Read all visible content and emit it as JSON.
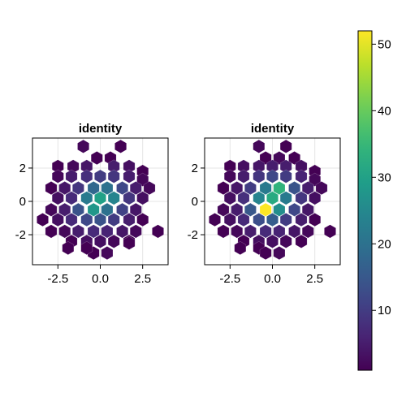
{
  "chart_data": [
    {
      "type": "heatmap",
      "subtype": "hexbin",
      "title": "identity",
      "xlabel": "",
      "ylabel": "",
      "xlim": [
        -4,
        4
      ],
      "ylim": [
        -3.8,
        3.8
      ],
      "xticks": [
        "-2.5",
        "0.0",
        "2.5"
      ],
      "yticks": [
        "2",
        "0",
        "-2"
      ],
      "grid": true,
      "bins": [
        {
          "x": -1.0,
          "y": 3.3,
          "v": 2
        },
        {
          "x": 1.2,
          "y": 3.3,
          "v": 1
        },
        {
          "x": -0.2,
          "y": 2.6,
          "v": 1
        },
        {
          "x": 0.6,
          "y": 2.6,
          "v": 1
        },
        {
          "x": -2.5,
          "y": 2.1,
          "v": 1
        },
        {
          "x": -1.6,
          "y": 2.1,
          "v": 2
        },
        {
          "x": -0.8,
          "y": 2.1,
          "v": 4
        },
        {
          "x": 0.8,
          "y": 2.1,
          "v": 5
        },
        {
          "x": 1.7,
          "y": 2.1,
          "v": 3
        },
        {
          "x": 2.5,
          "y": 1.8,
          "v": 1
        },
        {
          "x": -2.5,
          "y": 1.5,
          "v": 2
        },
        {
          "x": -1.7,
          "y": 1.5,
          "v": 5
        },
        {
          "x": -0.8,
          "y": 1.5,
          "v": 8
        },
        {
          "x": 0.0,
          "y": 1.5,
          "v": 10
        },
        {
          "x": 0.8,
          "y": 1.5,
          "v": 9
        },
        {
          "x": 1.7,
          "y": 1.5,
          "v": 5
        },
        {
          "x": 2.5,
          "y": 1.3,
          "v": 2
        },
        {
          "x": -2.9,
          "y": 0.8,
          "v": 1
        },
        {
          "x": -2.1,
          "y": 0.8,
          "v": 4
        },
        {
          "x": -1.3,
          "y": 0.8,
          "v": 9
        },
        {
          "x": -0.4,
          "y": 0.8,
          "v": 18
        },
        {
          "x": 0.4,
          "y": 0.8,
          "v": 20
        },
        {
          "x": 1.3,
          "y": 0.8,
          "v": 12
        },
        {
          "x": 2.1,
          "y": 0.8,
          "v": 5
        },
        {
          "x": 2.9,
          "y": 0.8,
          "v": 2
        },
        {
          "x": -2.5,
          "y": 0.2,
          "v": 3
        },
        {
          "x": -1.7,
          "y": 0.2,
          "v": 7
        },
        {
          "x": -0.8,
          "y": 0.2,
          "v": 22
        },
        {
          "x": 0.0,
          "y": 0.2,
          "v": 30
        },
        {
          "x": 0.8,
          "y": 0.2,
          "v": 24
        },
        {
          "x": 1.7,
          "y": 0.2,
          "v": 9
        },
        {
          "x": 2.5,
          "y": 0.2,
          "v": 3
        },
        {
          "x": -2.9,
          "y": -0.5,
          "v": 2
        },
        {
          "x": -2.1,
          "y": -0.5,
          "v": 5
        },
        {
          "x": -1.3,
          "y": -0.5,
          "v": 14
        },
        {
          "x": -0.4,
          "y": -0.5,
          "v": 28
        },
        {
          "x": 0.4,
          "y": -0.5,
          "v": 20
        },
        {
          "x": 1.3,
          "y": -0.5,
          "v": 11
        },
        {
          "x": 2.1,
          "y": -0.5,
          "v": 4
        },
        {
          "x": -3.4,
          "y": -1.1,
          "v": 1
        },
        {
          "x": -2.5,
          "y": -1.1,
          "v": 3
        },
        {
          "x": -1.7,
          "y": -1.1,
          "v": 7
        },
        {
          "x": -0.8,
          "y": -1.1,
          "v": 12
        },
        {
          "x": 0.0,
          "y": -1.1,
          "v": 14
        },
        {
          "x": 0.8,
          "y": -1.1,
          "v": 10
        },
        {
          "x": 1.7,
          "y": -1.1,
          "v": 5
        },
        {
          "x": 2.5,
          "y": -1.1,
          "v": 1
        },
        {
          "x": -2.9,
          "y": -1.8,
          "v": 1
        },
        {
          "x": -2.1,
          "y": -1.8,
          "v": 2
        },
        {
          "x": -1.3,
          "y": -1.8,
          "v": 5
        },
        {
          "x": -0.4,
          "y": -1.8,
          "v": 7
        },
        {
          "x": 0.4,
          "y": -1.8,
          "v": 6
        },
        {
          "x": 1.3,
          "y": -1.8,
          "v": 4
        },
        {
          "x": 2.1,
          "y": -1.8,
          "v": 2
        },
        {
          "x": 3.4,
          "y": -1.8,
          "v": 1
        },
        {
          "x": -0.8,
          "y": -2.4,
          "v": 3
        },
        {
          "x": 0.0,
          "y": -2.4,
          "v": 3
        },
        {
          "x": 0.8,
          "y": -2.4,
          "v": 2
        },
        {
          "x": -1.7,
          "y": -2.4,
          "v": 1
        },
        {
          "x": -0.4,
          "y": -3.1,
          "v": 1
        },
        {
          "x": 0.4,
          "y": -3.1,
          "v": 2
        },
        {
          "x": 1.7,
          "y": -2.4,
          "v": 1
        },
        {
          "x": 1.7,
          "y": -2.5,
          "v": 1
        },
        {
          "x": -0.8,
          "y": -2.8,
          "v": 1
        },
        {
          "x": -1.9,
          "y": -2.8,
          "v": 1
        }
      ]
    },
    {
      "type": "heatmap",
      "subtype": "hexbin",
      "title": "identity",
      "xlabel": "",
      "ylabel": "",
      "xlim": [
        -4,
        4
      ],
      "ylim": [
        -3.8,
        3.8
      ],
      "xticks": [
        "-2.5",
        "0.0",
        "2.5"
      ],
      "yticks": [
        "2",
        "0",
        "-2"
      ],
      "grid": true,
      "bins": [
        {
          "x": -0.8,
          "y": 3.3,
          "v": 2
        },
        {
          "x": 0.8,
          "y": 3.3,
          "v": 1
        },
        {
          "x": -0.4,
          "y": 2.6,
          "v": 1
        },
        {
          "x": 0.4,
          "y": 2.6,
          "v": 2
        },
        {
          "x": 1.3,
          "y": 2.6,
          "v": 1
        },
        {
          "x": -2.5,
          "y": 2.1,
          "v": 1
        },
        {
          "x": -1.7,
          "y": 2.1,
          "v": 3
        },
        {
          "x": -0.8,
          "y": 2.1,
          "v": 4
        },
        {
          "x": 0.0,
          "y": 2.1,
          "v": 5
        },
        {
          "x": 0.8,
          "y": 2.1,
          "v": 5
        },
        {
          "x": 1.7,
          "y": 2.1,
          "v": 3
        },
        {
          "x": 2.5,
          "y": 1.8,
          "v": 1
        },
        {
          "x": -2.5,
          "y": 1.5,
          "v": 2
        },
        {
          "x": -1.7,
          "y": 1.5,
          "v": 5
        },
        {
          "x": -0.8,
          "y": 1.5,
          "v": 9
        },
        {
          "x": 0.0,
          "y": 1.5,
          "v": 12
        },
        {
          "x": 0.8,
          "y": 1.5,
          "v": 10
        },
        {
          "x": 1.7,
          "y": 1.5,
          "v": 6
        },
        {
          "x": 2.5,
          "y": 1.3,
          "v": 2
        },
        {
          "x": -2.9,
          "y": 0.8,
          "v": 1
        },
        {
          "x": -2.1,
          "y": 0.8,
          "v": 4
        },
        {
          "x": -1.3,
          "y": 0.8,
          "v": 10
        },
        {
          "x": -0.4,
          "y": 0.8,
          "v": 22
        },
        {
          "x": 0.4,
          "y": 0.8,
          "v": 34
        },
        {
          "x": 1.3,
          "y": 0.8,
          "v": 14
        },
        {
          "x": 2.1,
          "y": 0.8,
          "v": 5
        },
        {
          "x": 2.9,
          "y": 0.8,
          "v": 2
        },
        {
          "x": -2.5,
          "y": 0.2,
          "v": 3
        },
        {
          "x": -1.7,
          "y": 0.2,
          "v": 8
        },
        {
          "x": -0.8,
          "y": 0.2,
          "v": 24
        },
        {
          "x": 0.0,
          "y": 0.2,
          "v": 32
        },
        {
          "x": 0.8,
          "y": 0.2,
          "v": 22
        },
        {
          "x": 1.7,
          "y": 0.2,
          "v": 9
        },
        {
          "x": 2.5,
          "y": 0.2,
          "v": 3
        },
        {
          "x": -2.9,
          "y": -0.5,
          "v": 2
        },
        {
          "x": -2.1,
          "y": -0.5,
          "v": 5
        },
        {
          "x": -1.3,
          "y": -0.5,
          "v": 15
        },
        {
          "x": -0.4,
          "y": -0.5,
          "v": 52
        },
        {
          "x": 0.4,
          "y": -0.5,
          "v": 26
        },
        {
          "x": 1.3,
          "y": -0.5,
          "v": 12
        },
        {
          "x": 2.1,
          "y": -0.5,
          "v": 4
        },
        {
          "x": -3.4,
          "y": -1.1,
          "v": 1
        },
        {
          "x": -2.5,
          "y": -1.1,
          "v": 3
        },
        {
          "x": -1.7,
          "y": -1.1,
          "v": 7
        },
        {
          "x": -0.8,
          "y": -1.1,
          "v": 13
        },
        {
          "x": 0.0,
          "y": -1.1,
          "v": 16
        },
        {
          "x": 0.8,
          "y": -1.1,
          "v": 10
        },
        {
          "x": 1.7,
          "y": -1.1,
          "v": 5
        },
        {
          "x": 2.5,
          "y": -1.1,
          "v": 1
        },
        {
          "x": -2.9,
          "y": -1.8,
          "v": 1
        },
        {
          "x": -2.1,
          "y": -1.8,
          "v": 2
        },
        {
          "x": -1.3,
          "y": -1.8,
          "v": 5
        },
        {
          "x": -0.4,
          "y": -1.8,
          "v": 7
        },
        {
          "x": 0.4,
          "y": -1.8,
          "v": 6
        },
        {
          "x": 1.3,
          "y": -1.8,
          "v": 4
        },
        {
          "x": 2.1,
          "y": -1.8,
          "v": 2
        },
        {
          "x": 3.4,
          "y": -1.8,
          "v": 1
        },
        {
          "x": -1.7,
          "y": -2.4,
          "v": 1
        },
        {
          "x": -0.8,
          "y": -2.4,
          "v": 3
        },
        {
          "x": 0.0,
          "y": -2.4,
          "v": 3
        },
        {
          "x": 0.8,
          "y": -2.4,
          "v": 2
        },
        {
          "x": 1.7,
          "y": -2.4,
          "v": 1
        },
        {
          "x": -1.9,
          "y": -2.8,
          "v": 1
        },
        {
          "x": -0.8,
          "y": -2.8,
          "v": 1
        },
        {
          "x": -0.4,
          "y": -3.1,
          "v": 1
        },
        {
          "x": 0.4,
          "y": -3.1,
          "v": 2
        }
      ]
    },
    {
      "type": "colorbar",
      "colormap": "viridis",
      "range": [
        1,
        52
      ],
      "ticks": [
        10,
        20,
        30,
        40,
        50
      ]
    }
  ]
}
